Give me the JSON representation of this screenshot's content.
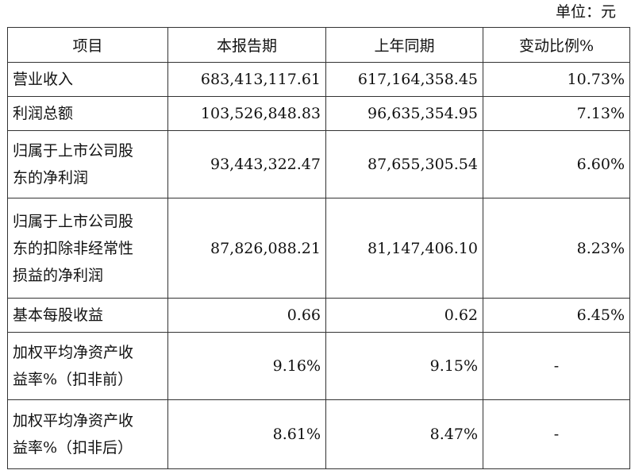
{
  "unit_note": "单位：元",
  "table": {
    "headers": [
      "项目",
      "本报告期",
      "上年同期",
      "变动比例%"
    ],
    "rows": [
      {
        "label_lines": [
          "营业收入"
        ],
        "current": "683,413,117.61",
        "prior": "617,164,358.45",
        "change": "10.73%"
      },
      {
        "label_lines": [
          "利润总额"
        ],
        "current": "103,526,848.83",
        "prior": "96,635,354.95",
        "change": "7.13%"
      },
      {
        "label_lines": [
          "归属于上市公司股",
          "东的净利润"
        ],
        "current": "93,443,322.47",
        "prior": "87,655,305.54",
        "change": "6.60%"
      },
      {
        "label_lines": [
          "归属于上市公司股",
          "东的扣除非经常性",
          "损益的净利润"
        ],
        "current": "87,826,088.21",
        "prior": "81,147,406.10",
        "change": "8.23%"
      },
      {
        "label_lines": [
          "基本每股收益"
        ],
        "current": "0.66",
        "prior": "0.62",
        "change": "6.45%"
      },
      {
        "label_lines": [
          "加权平均净资产收",
          "益率%（扣非前）"
        ],
        "current": "9.16%",
        "prior": "9.15%",
        "change": "-"
      },
      {
        "label_lines": [
          "加权平均净资产收",
          "益率%（扣非后）"
        ],
        "current": "8.61%",
        "prior": "8.47%",
        "change": "-"
      }
    ]
  }
}
